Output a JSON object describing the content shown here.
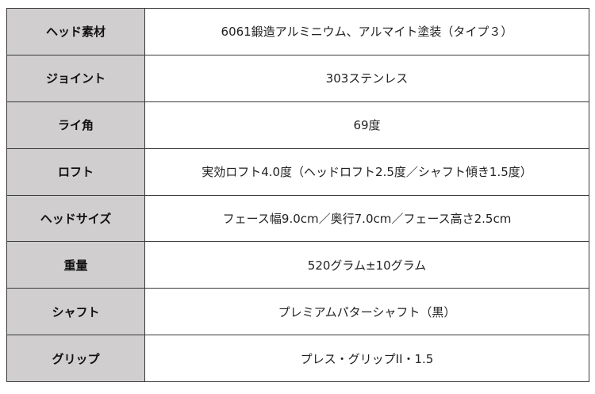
{
  "rows": [
    {
      "label": "ヘッド素材",
      "value": "6061鍛造アルミニウム、アルマイト塗装（タイプ３）"
    },
    {
      "label": "ジョイント",
      "value": "303ステンレス"
    },
    {
      "label": "ライ角",
      "value": "69度"
    },
    {
      "label": "ロフト",
      "value": "実効ロフト4.0度（ヘッドロフト2.5度／シャフト傾き1.5度）"
    },
    {
      "label": "ヘッドサイズ",
      "value": "フェース幅9.0cm／奥行7.0cm／フェース高さ2.5cm"
    },
    {
      "label": "重量",
      "value": "520グラム±10グラム"
    },
    {
      "label": "シャフト",
      "value": "プレミアムパターシャフト（黒）"
    },
    {
      "label": "グリップ",
      "value": "プレス・グリップII・1.5"
    }
  ]
}
